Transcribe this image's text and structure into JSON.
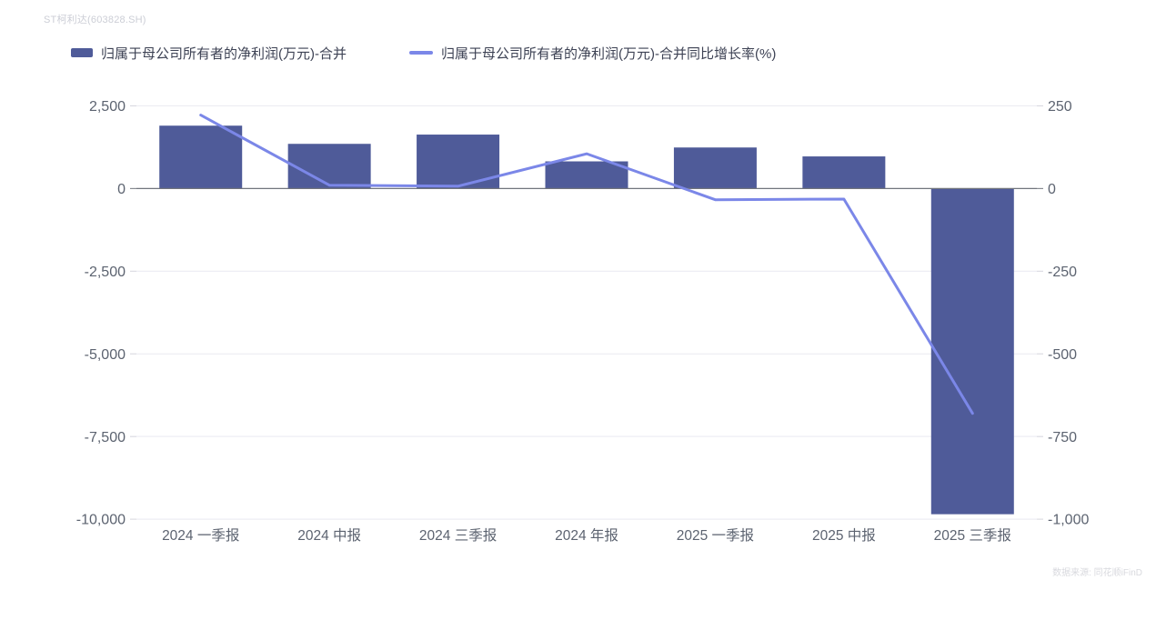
{
  "header": {
    "watermark": "ST柯利达(603828.SH)"
  },
  "footer": {
    "source": "数据来源: 同花顺iFinD"
  },
  "chart_data": {
    "type": "bar+line",
    "title": "",
    "categories": [
      "2024 一季报",
      "2024 中报",
      "2024 三季报",
      "2024 年报",
      "2025 一季报",
      "2025 中报",
      "2025 三季报"
    ],
    "series": [
      {
        "name": "归属于母公司所有者的净利润(万元)-合并",
        "type": "bar",
        "axis": "left",
        "color": "#4f5b99",
        "values": [
          1900,
          1350,
          1630,
          820,
          1240,
          970,
          -9850
        ]
      },
      {
        "name": "归属于母公司所有者的净利润(万元)-合并同比增长率(%)",
        "type": "line",
        "axis": "right",
        "color": "#7b87e8",
        "values": [
          222,
          10,
          7,
          105,
          -34,
          -32,
          -680
        ]
      }
    ],
    "left_axis": {
      "min": -10000,
      "max": 2500,
      "ticks": [
        2500,
        0,
        -2500,
        -5000,
        -7500,
        -10000
      ],
      "tick_labels": [
        "2,500",
        "0",
        "-2,500",
        "-5,000",
        "-7,500",
        "-10,000"
      ]
    },
    "right_axis": {
      "min": -1000,
      "max": 250,
      "ticks": [
        250,
        0,
        -250,
        -500,
        -750,
        -1000
      ],
      "tick_labels": [
        "250",
        "0",
        "-250",
        "-500",
        "-750",
        "-1,000"
      ]
    },
    "grid": true,
    "legend_position": "top-left",
    "colors": {
      "grid_line": "#e9e9f0",
      "zero_line": "#71757d",
      "axis_text": "#5c6370",
      "legend_text": "#3d4254"
    }
  }
}
